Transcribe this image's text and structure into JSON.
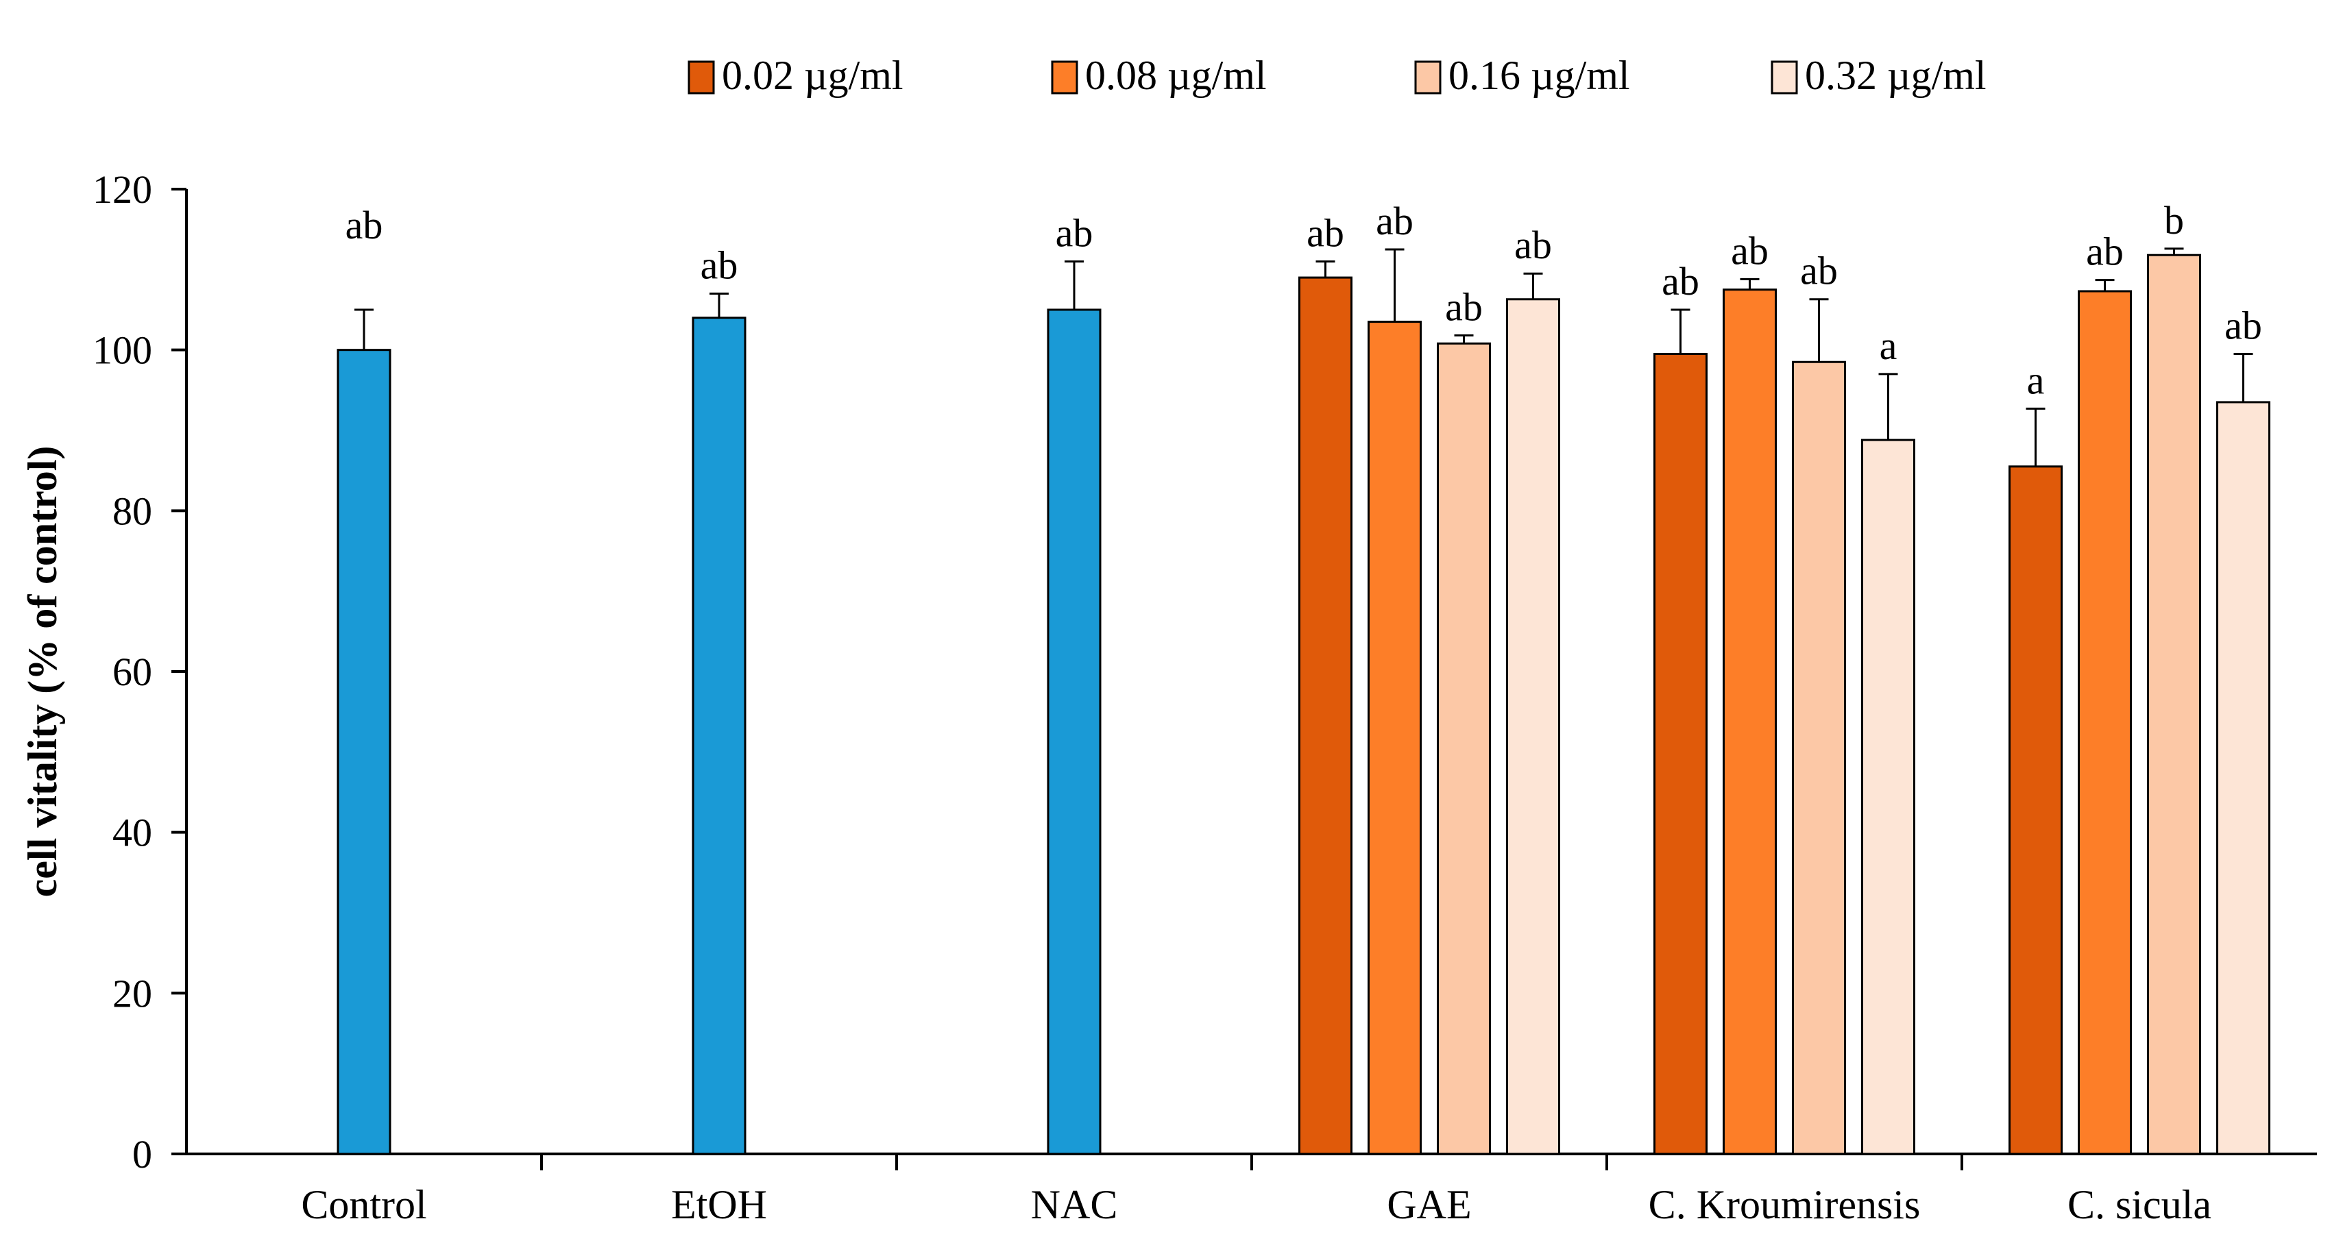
{
  "chart_data": {
    "type": "bar",
    "title": "",
    "xlabel": "",
    "ylabel": "cell vitality (% of control)",
    "ylim": [
      0,
      120
    ],
    "yticks": [
      "0",
      "20",
      "40",
      "60",
      "80",
      "100",
      "120"
    ],
    "grid": false,
    "legend_position": "top",
    "legend": [
      {
        "label": "0.02 µg/ml",
        "color": "#e05a0a"
      },
      {
        "label": "0.08 µg/ml",
        "color": "#fd7e28"
      },
      {
        "label": "0.16 µg/ml",
        "color": "#fcc8a6"
      },
      {
        "label": "0.32 µg/ml",
        "color": "#fde5d6"
      }
    ],
    "control_color": "#1a9ad6",
    "groups": [
      {
        "label": "Control",
        "bars": [
          {
            "value": 100,
            "error": 5,
            "sig": "ab",
            "color": "#1a9ad6"
          }
        ]
      },
      {
        "label": "EtOH",
        "bars": [
          {
            "value": 104,
            "error": 3,
            "sig": "ab",
            "color": "#1a9ad6"
          }
        ]
      },
      {
        "label": "NAC",
        "bars": [
          {
            "value": 105,
            "error": 6,
            "sig": "ab",
            "color": "#1a9ad6"
          }
        ]
      },
      {
        "label": "GAE",
        "bars": [
          {
            "value": 109,
            "error": 2,
            "sig": "ab",
            "color": "#e05a0a"
          },
          {
            "value": 103.5,
            "error": 9,
            "sig": "ab",
            "color": "#fd7e28"
          },
          {
            "value": 100.8,
            "error": 1,
            "sig": "ab",
            "color": "#fcc8a6"
          },
          {
            "value": 106.3,
            "error": 3.2,
            "sig": "ab",
            "color": "#fde5d6"
          }
        ]
      },
      {
        "label": "C. Kroumirensis",
        "bars": [
          {
            "value": 99.5,
            "error": 5.5,
            "sig": "ab",
            "color": "#e05a0a"
          },
          {
            "value": 107.5,
            "error": 1.3,
            "sig": "ab",
            "color": "#fd7e28"
          },
          {
            "value": 98.5,
            "error": 7.8,
            "sig": "ab",
            "color": "#fcc8a6"
          },
          {
            "value": 88.8,
            "error": 8.2,
            "sig": "a",
            "color": "#fde5d6"
          }
        ]
      },
      {
        "label": "C. sicula",
        "bars": [
          {
            "value": 85.5,
            "error": 7.2,
            "sig": "a",
            "color": "#e05a0a"
          },
          {
            "value": 107.3,
            "error": 1.4,
            "sig": "ab",
            "color": "#fd7e28"
          },
          {
            "value": 111.8,
            "error": 0.8,
            "sig": "b",
            "color": "#fcc8a6"
          },
          {
            "value": 93.5,
            "error": 6,
            "sig": "ab",
            "color": "#fde5d6"
          }
        ]
      }
    ]
  }
}
